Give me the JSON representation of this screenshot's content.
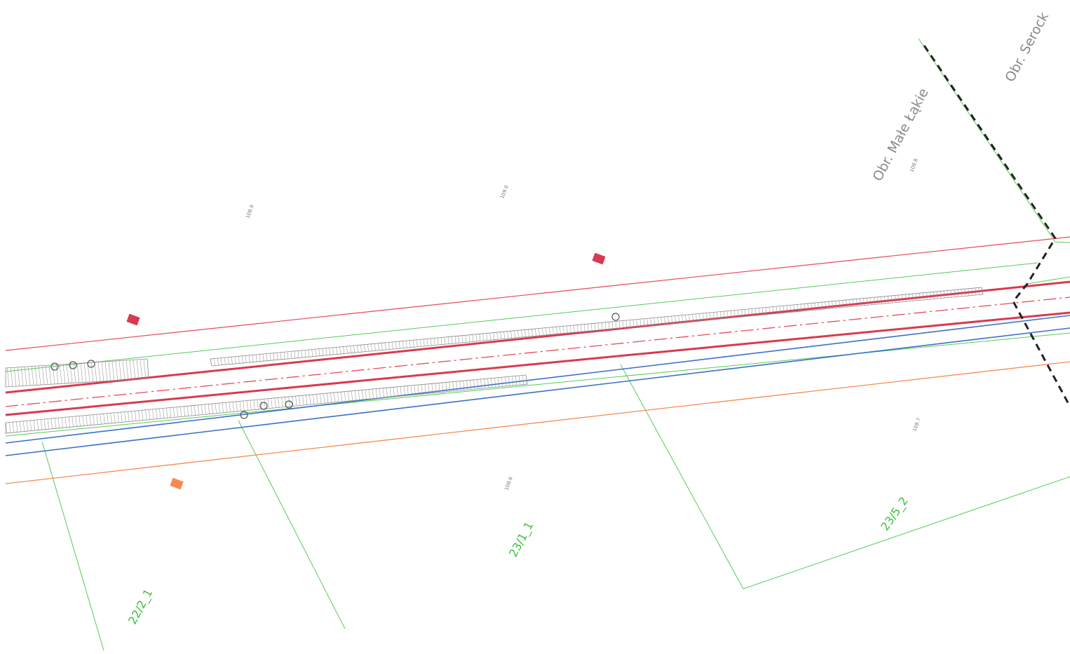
{
  "districts": [
    "Obr. Małe Łąkie",
    "Obr. Serock"
  ],
  "parcels": [
    "22/2_1",
    "23/1_1",
    "23/5_2"
  ],
  "elevations": [
    "108.9",
    "109.0",
    "108.8",
    "108.6",
    "108.7"
  ]
}
